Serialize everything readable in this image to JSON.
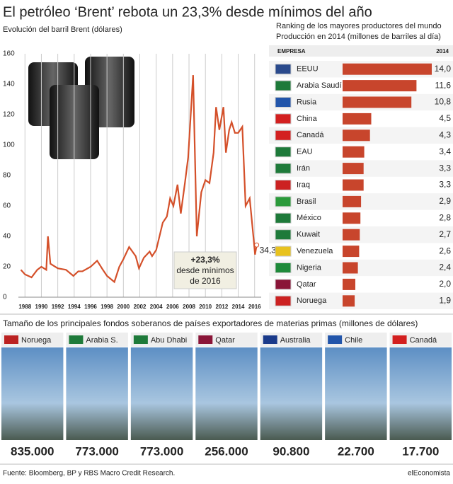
{
  "title": "El petróleo ‘Brent’ rebota un 23,3% desde mínimos del año",
  "chart_data": [
    {
      "type": "line",
      "title": "Evolución del barril Brent (dólares)",
      "x": [
        1987.5,
        1988,
        1988.8,
        1989.5,
        1990,
        1990.6,
        1990.8,
        1991.1,
        1992,
        1993,
        1993.9,
        1994.5,
        1995,
        1996,
        1996.8,
        1997.5,
        1998,
        1998.9,
        1999.5,
        2000,
        2000.7,
        2001.5,
        2001.9,
        2002.5,
        2003.2,
        2003.5,
        2004,
        2004.8,
        2005.3,
        2005.7,
        2006.1,
        2006.6,
        2007,
        2007.5,
        2007.9,
        2008.5,
        2008.95,
        2009.5,
        2010,
        2010.5,
        2011,
        2011.3,
        2011.7,
        2012.2,
        2012.5,
        2012.9,
        2013.2,
        2013.6,
        2014,
        2014.5,
        2014.9,
        2015.4,
        2015.9,
        2016.05,
        2016.25
      ],
      "series": [
        {
          "name": "Brent",
          "color": "#d4502a",
          "values": [
            18,
            15,
            13,
            18,
            20,
            18,
            40,
            22,
            19,
            18,
            14,
            17,
            17,
            20,
            24,
            18,
            14,
            10,
            20,
            25,
            33,
            27,
            19,
            26,
            30,
            27,
            31,
            49,
            53,
            65,
            60,
            74,
            55,
            75,
            92,
            146,
            40,
            69,
            77,
            75,
            95,
            125,
            110,
            125,
            95,
            110,
            115,
            108,
            108,
            112,
            60,
            65,
            37,
            28,
            34.3
          ],
          "value_labels": [
            null,
            null,
            null,
            null,
            null,
            null,
            null,
            null,
            null,
            null,
            null,
            null,
            null,
            null,
            null,
            null,
            null,
            null,
            null,
            null,
            null,
            null,
            null,
            null,
            null,
            null,
            null,
            null,
            null,
            null,
            null,
            null,
            null,
            null,
            null,
            null,
            null,
            null,
            null,
            null,
            null,
            null,
            null,
            null,
            null,
            null,
            null,
            null,
            null,
            null,
            null,
            null,
            null,
            null,
            "34,3"
          ]
        }
      ],
      "xlim": [
        1987.2,
        2016.8
      ],
      "xticks": [
        1988,
        1990,
        1992,
        1994,
        1996,
        1998,
        2000,
        2002,
        2004,
        2006,
        2008,
        2010,
        2012,
        2014,
        2016
      ],
      "ylim": [
        0,
        160
      ],
      "yticks": [
        0,
        20,
        40,
        60,
        80,
        100,
        120,
        140,
        160
      ],
      "grid": true,
      "annotation": [
        "+23,3%",
        "desde mínimos",
        "de 2016"
      ]
    },
    {
      "type": "hbar",
      "title": [
        "Ranking de los mayores productores del mundo",
        "Producción en 2014 (millones de barriles al día)"
      ],
      "header": [
        "EMPRESA",
        "2014"
      ],
      "categories": [
        "EEUU",
        "Arabia Saudí",
        "Rusia",
        "China",
        "Canadá",
        "EAU",
        "Irán",
        "Iraq",
        "Brasil",
        "México",
        "Kuwait",
        "Venezuela",
        "Nigeria",
        "Qatar",
        "Noruega"
      ],
      "values": [
        14.0,
        11.6,
        10.8,
        4.5,
        4.3,
        3.4,
        3.3,
        3.3,
        2.9,
        2.8,
        2.7,
        2.6,
        2.4,
        2.0,
        1.9
      ],
      "value_labels": [
        "14,0",
        "11,6",
        "10,8",
        "4,5",
        "4,3",
        "3,4",
        "3,3",
        "3,3",
        "2,9",
        "2,8",
        "2,7",
        "2,6",
        "2,4",
        "2,0",
        "1,9"
      ],
      "color": "#c8452c",
      "xlim": [
        0,
        14
      ]
    }
  ],
  "funds": {
    "title": "Tamaño de los principales fondos soberanos de países exportadores de materias primas (millones de dólares)",
    "items": [
      {
        "name": "Noruega",
        "amount": "835.000"
      },
      {
        "name": "Arabia S.",
        "amount": "773.000"
      },
      {
        "name": "Abu Dhabi",
        "amount": "773.000"
      },
      {
        "name": "Qatar",
        "amount": "256.000"
      },
      {
        "name": "Australia",
        "amount": "90.800"
      },
      {
        "name": "Chile",
        "amount": "22.700"
      },
      {
        "name": "Canadá",
        "amount": "17.700"
      }
    ]
  },
  "source": "Fuente: Bloomberg, BP y RBS Macro Credit Research.",
  "brand": "elEconomista"
}
